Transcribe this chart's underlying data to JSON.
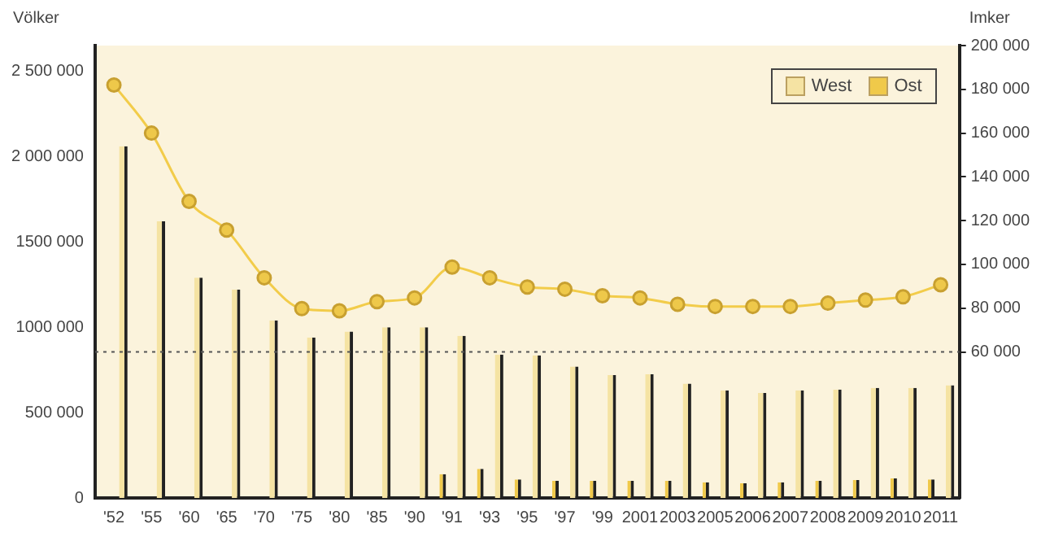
{
  "chart_data": {
    "type": "bar",
    "xlabel": null,
    "ylabel": "Völker",
    "y2label": "Imker",
    "categories": [
      "'52",
      "'55",
      "'60",
      "'65",
      "'70",
      "'75",
      "'80",
      "'85",
      "'90",
      "'91",
      "'93",
      "'95",
      "'97",
      "'99",
      "2001",
      "2003",
      "2005",
      "2006",
      "2007",
      "2008",
      "2009",
      "2010",
      "2011"
    ],
    "series": [
      {
        "name": "West",
        "color": "#f5e3a3",
        "values": [
          2060000,
          1620000,
          1290000,
          1220000,
          1040000,
          940000,
          975000,
          1000000,
          1000000,
          950000,
          840000,
          835000,
          770000,
          720000,
          725000,
          670000,
          630000,
          615000,
          630000,
          635000,
          645000,
          645000,
          660000
        ]
      },
      {
        "name": "Ost",
        "color": "#f0c94a",
        "values": [
          null,
          null,
          null,
          null,
          null,
          null,
          null,
          null,
          null,
          140000,
          170000,
          108000,
          100000,
          100000,
          100000,
          100000,
          92000,
          86000,
          92000,
          100000,
          105000,
          114000,
          108000
        ]
      },
      {
        "type": "line",
        "axis": "y2",
        "color": "#f2cc4a",
        "values": [
          182000,
          160000,
          128800,
          115700,
          93900,
          79800,
          78800,
          83000,
          84700,
          98800,
          93900,
          89700,
          88700,
          85700,
          84700,
          81800,
          80800,
          80800,
          80800,
          82300,
          83700,
          85200,
          90700
        ]
      }
    ],
    "ylim": [
      0,
      2650000
    ],
    "yticks": [
      0,
      {
        "value": 500000,
        "label": "500 000"
      },
      {
        "value": 1000000,
        "label": "1000 000"
      },
      {
        "value": 1500000,
        "label": "1500 000"
      },
      {
        "value": 2000000,
        "label": "2 000 000"
      },
      {
        "value": 2500000,
        "label": "2 500 000"
      }
    ],
    "y2lim": [
      -6700,
      200000
    ],
    "y2ticks": [
      {
        "value": 60000,
        "label": "60 000"
      },
      {
        "value": 80000,
        "label": "80 000"
      },
      {
        "value": 100000,
        "label": "100 000"
      },
      {
        "value": 120000,
        "label": "120 000"
      },
      {
        "value": 140000,
        "label": "140 000"
      },
      {
        "value": 160000,
        "label": "160 000"
      },
      {
        "value": 180000,
        "label": "180 000"
      },
      {
        "value": 200000,
        "label": "200 000"
      }
    ],
    "ref_lines": [
      {
        "axis": "y2",
        "value": 60000,
        "line_style": "dotted",
        "color": "#555555"
      }
    ],
    "marker": "circle",
    "grid": false,
    "legend": "top right"
  }
}
